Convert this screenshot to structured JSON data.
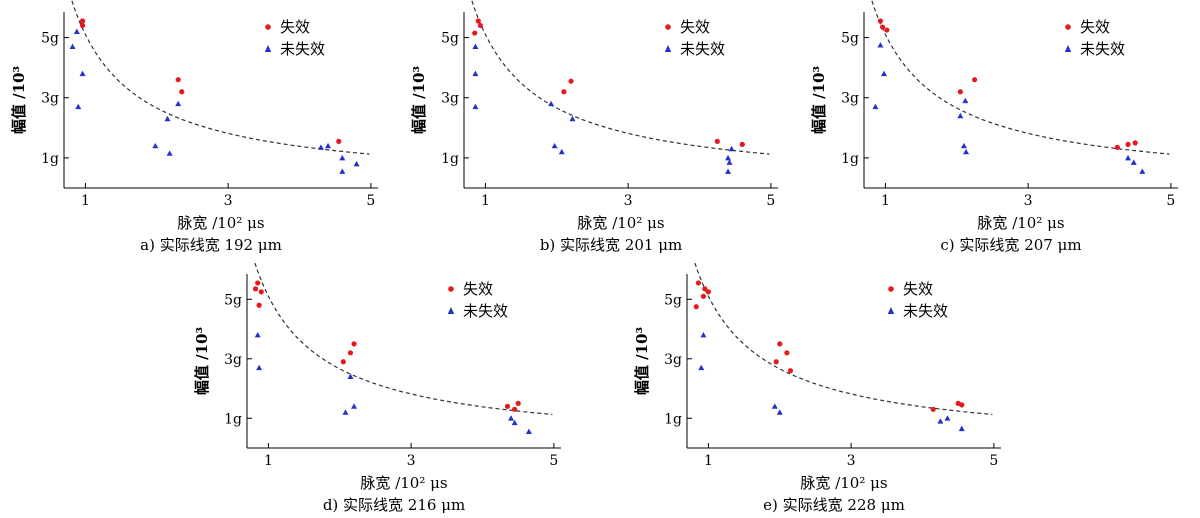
{
  "chart_data": [
    {
      "type": "scatter",
      "caption": "a) 实际线宽 192 μm",
      "xlabel": "脉宽 /10² μs",
      "ylabel": "幅值 /10³",
      "xlim": [
        0.7,
        5.1
      ],
      "ylim": [
        0.0,
        5.85
      ],
      "xticks": [
        {
          "v": 1,
          "label": "1"
        },
        {
          "v": 3,
          "label": "3"
        },
        {
          "v": 5,
          "label": "5"
        }
      ],
      "yticks": [
        {
          "v": 1,
          "label": "1g"
        },
        {
          "v": 3,
          "label": "3g"
        },
        {
          "v": 5,
          "label": "5g"
        }
      ],
      "legend": [
        "失效",
        "未失效"
      ],
      "trend": {
        "a": 5.1,
        "b": 0.94
      },
      "series": [
        {
          "name": "失效",
          "color": "#e8191e",
          "marker": "circle",
          "points": [
            [
              0.96,
              5.55
            ],
            [
              0.96,
              5.4
            ],
            [
              2.3,
              3.6
            ],
            [
              2.35,
              3.2
            ],
            [
              4.55,
              1.55
            ]
          ]
        },
        {
          "name": "未失效",
          "color": "#2233cc",
          "marker": "triangle",
          "points": [
            [
              0.82,
              4.7
            ],
            [
              0.88,
              5.2
            ],
            [
              0.96,
              3.8
            ],
            [
              0.9,
              2.7
            ],
            [
              2.15,
              2.3
            ],
            [
              1.98,
              1.4
            ],
            [
              2.18,
              1.15
            ],
            [
              2.3,
              2.8
            ],
            [
              4.3,
              1.35
            ],
            [
              4.4,
              1.4
            ],
            [
              4.6,
              1.0
            ],
            [
              4.6,
              0.55
            ],
            [
              4.8,
              0.8
            ]
          ]
        }
      ]
    },
    {
      "type": "scatter",
      "caption": "b) 实际线宽 201 μm",
      "xlabel": "脉宽 /10² μs",
      "ylabel": "幅值 /10³",
      "xlim": [
        0.7,
        5.1
      ],
      "ylim": [
        0.0,
        5.85
      ],
      "xticks": [
        {
          "v": 1,
          "label": "1"
        },
        {
          "v": 3,
          "label": "3"
        },
        {
          "v": 5,
          "label": "5"
        }
      ],
      "yticks": [
        {
          "v": 1,
          "label": "1g"
        },
        {
          "v": 3,
          "label": "3g"
        },
        {
          "v": 5,
          "label": "5g"
        }
      ],
      "legend": [
        "失效",
        "未失效"
      ],
      "trend": {
        "a": 5.1,
        "b": 0.94
      },
      "series": [
        {
          "name": "失效",
          "color": "#e8191e",
          "marker": "circle",
          "points": [
            [
              0.9,
              5.55
            ],
            [
              0.93,
              5.4
            ],
            [
              0.85,
              5.15
            ],
            [
              2.1,
              3.2
            ],
            [
              2.2,
              3.55
            ],
            [
              4.25,
              1.55
            ],
            [
              4.6,
              1.45
            ]
          ]
        },
        {
          "name": "未失效",
          "color": "#2233cc",
          "marker": "triangle",
          "points": [
            [
              0.86,
              4.7
            ],
            [
              0.86,
              3.8
            ],
            [
              0.86,
              2.7
            ],
            [
              1.92,
              2.8
            ],
            [
              2.22,
              2.3
            ],
            [
              1.97,
              1.4
            ],
            [
              2.07,
              1.2
            ],
            [
              4.45,
              1.3
            ],
            [
              4.4,
              1.0
            ],
            [
              4.42,
              0.85
            ],
            [
              4.4,
              0.55
            ]
          ]
        }
      ]
    },
    {
      "type": "scatter",
      "caption": "c) 实际线宽 207 μm",
      "xlabel": "脉宽 /10² μs",
      "ylabel": "幅值 /10³",
      "xlim": [
        0.7,
        5.1
      ],
      "ylim": [
        0.0,
        5.85
      ],
      "xticks": [
        {
          "v": 1,
          "label": "1"
        },
        {
          "v": 3,
          "label": "3"
        },
        {
          "v": 5,
          "label": "5"
        }
      ],
      "yticks": [
        {
          "v": 1,
          "label": "1g"
        },
        {
          "v": 3,
          "label": "3g"
        },
        {
          "v": 5,
          "label": "5g"
        }
      ],
      "legend": [
        "失效",
        "未失效"
      ],
      "trend": {
        "a": 5.1,
        "b": 0.94
      },
      "series": [
        {
          "name": "失效",
          "color": "#e8191e",
          "marker": "circle",
          "points": [
            [
              0.93,
              5.55
            ],
            [
              0.96,
              5.35
            ],
            [
              1.02,
              5.25
            ],
            [
              2.05,
              3.2
            ],
            [
              2.25,
              3.6
            ],
            [
              4.25,
              1.35
            ],
            [
              4.4,
              1.45
            ],
            [
              4.5,
              1.5
            ]
          ]
        },
        {
          "name": "未失效",
          "color": "#2233cc",
          "marker": "triangle",
          "points": [
            [
              0.93,
              4.75
            ],
            [
              0.98,
              3.8
            ],
            [
              0.86,
              2.7
            ],
            [
              2.12,
              2.9
            ],
            [
              2.05,
              2.4
            ],
            [
              2.1,
              1.4
            ],
            [
              2.13,
              1.2
            ],
            [
              4.4,
              1.0
            ],
            [
              4.48,
              0.85
            ],
            [
              4.6,
              0.55
            ]
          ]
        }
      ]
    },
    {
      "type": "scatter",
      "caption": "d) 实际线宽 216 μm",
      "xlabel": "脉宽 /10² μs",
      "ylabel": "幅值 /10³",
      "xlim": [
        0.7,
        5.1
      ],
      "ylim": [
        0.0,
        5.85
      ],
      "xticks": [
        {
          "v": 1,
          "label": "1"
        },
        {
          "v": 3,
          "label": "3"
        },
        {
          "v": 5,
          "label": "5"
        }
      ],
      "yticks": [
        {
          "v": 1,
          "label": "1g"
        },
        {
          "v": 3,
          "label": "3g"
        },
        {
          "v": 5,
          "label": "5g"
        }
      ],
      "legend": [
        "失效",
        "未失效"
      ],
      "trend": {
        "a": 5.1,
        "b": 0.94
      },
      "series": [
        {
          "name": "失效",
          "color": "#e8191e",
          "marker": "circle",
          "points": [
            [
              0.85,
              5.55
            ],
            [
              0.82,
              5.35
            ],
            [
              0.9,
              5.25
            ],
            [
              0.87,
              4.8
            ],
            [
              2.05,
              2.9
            ],
            [
              2.15,
              3.2
            ],
            [
              2.2,
              3.5
            ],
            [
              4.35,
              1.4
            ],
            [
              4.45,
              1.3
            ],
            [
              4.5,
              1.5
            ]
          ]
        },
        {
          "name": "未失效",
          "color": "#2233cc",
          "marker": "triangle",
          "points": [
            [
              0.85,
              3.8
            ],
            [
              0.87,
              2.7
            ],
            [
              2.15,
              2.4
            ],
            [
              2.2,
              1.4
            ],
            [
              2.08,
              1.2
            ],
            [
              4.4,
              1.0
            ],
            [
              4.45,
              0.85
            ],
            [
              4.65,
              0.55
            ]
          ]
        }
      ]
    },
    {
      "type": "scatter",
      "caption": "e) 实际线宽 228 μm",
      "xlabel": "脉宽 /10² μs",
      "ylabel": "幅值 /10³",
      "xlim": [
        0.7,
        5.1
      ],
      "ylim": [
        0.0,
        5.85
      ],
      "xticks": [
        {
          "v": 1,
          "label": "1"
        },
        {
          "v": 3,
          "label": "3"
        },
        {
          "v": 5,
          "label": "5"
        }
      ],
      "yticks": [
        {
          "v": 1,
          "label": "1g"
        },
        {
          "v": 3,
          "label": "3g"
        },
        {
          "v": 5,
          "label": "5g"
        }
      ],
      "legend": [
        "失效",
        "未失效"
      ],
      "trend": {
        "a": 5.1,
        "b": 0.94
      },
      "series": [
        {
          "name": "失效",
          "color": "#e8191e",
          "marker": "circle",
          "points": [
            [
              0.86,
              5.55
            ],
            [
              0.95,
              5.35
            ],
            [
              1.0,
              5.25
            ],
            [
              0.93,
              5.1
            ],
            [
              0.83,
              4.75
            ],
            [
              2.0,
              3.5
            ],
            [
              2.1,
              3.2
            ],
            [
              1.95,
              2.9
            ],
            [
              2.15,
              2.6
            ],
            [
              4.15,
              1.3
            ],
            [
              4.5,
              1.5
            ],
            [
              4.55,
              1.45
            ]
          ]
        },
        {
          "name": "未失效",
          "color": "#2233cc",
          "marker": "triangle",
          "points": [
            [
              0.93,
              3.8
            ],
            [
              0.9,
              2.7
            ],
            [
              1.93,
              1.4
            ],
            [
              2.0,
              1.2
            ],
            [
              4.25,
              0.9
            ],
            [
              4.35,
              1.0
            ],
            [
              4.55,
              0.65
            ]
          ]
        }
      ]
    }
  ]
}
